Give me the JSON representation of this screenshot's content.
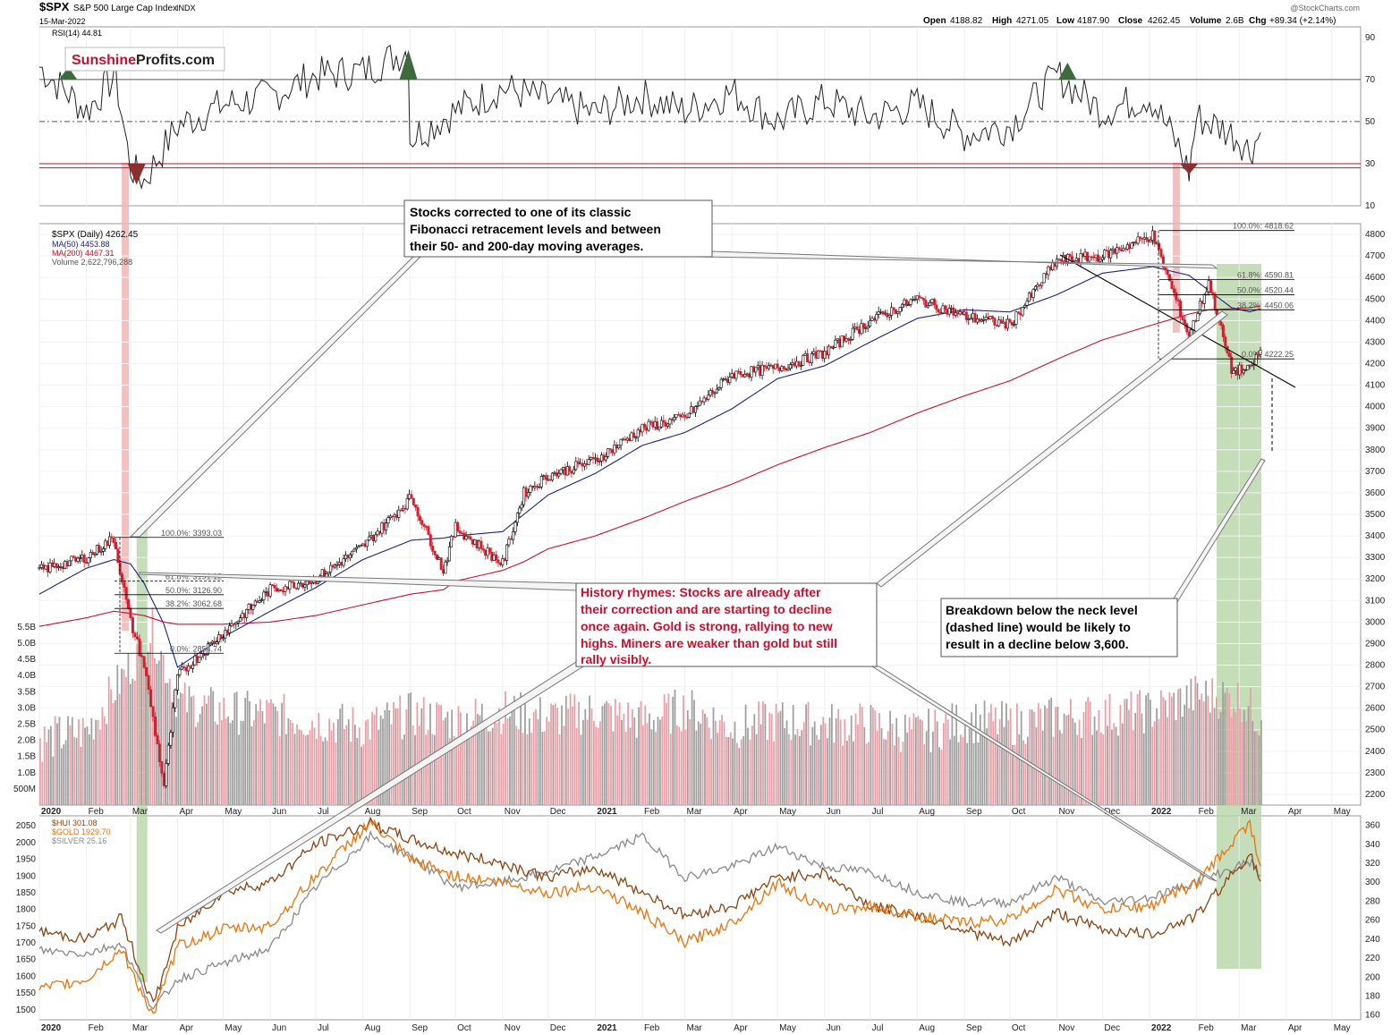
{
  "header": {
    "symbol": "$SPX",
    "name": "S&P 500 Large Cap Index",
    "exchange": "INDX",
    "date": "15-Mar-2022",
    "copyright": "@StockCharts.com",
    "open_label": "Open",
    "open": "4188.82",
    "high_label": "High",
    "high": "4271.05",
    "low_label": "Low",
    "low": "4187.90",
    "close_label": "Close",
    "close": "4262.45",
    "volume_label": "Volume",
    "volume": "2.6B",
    "chg_label": "Chg",
    "chg": "+89.34 (+2.14%)"
  },
  "watermark": {
    "part1": "Sunshine",
    "part2": "Profits.com",
    "color1": "#c8102e"
  },
  "colors": {
    "price_up": "#000000",
    "price_down": "#d0202e",
    "ma50": "#1a237e",
    "ma200": "#c8102e",
    "rsi": "#222222",
    "rsi_overbought": "#3d6b3d",
    "rsi_oversold": "#8b2e2e",
    "vol_up": "#a0a0a0",
    "vol_down": "#e8a0a8",
    "hui": "#8b4513",
    "gold": "#e8740c",
    "silver": "#8a8a8a",
    "green_band": "#b8d4a8",
    "red_band": "#f0b0b0",
    "annotation_red": "#c8102e"
  },
  "chart_data": [
    {
      "type": "line",
      "panel": "RSI",
      "legend": "RSI(14) 44.81",
      "yticks": [
        10,
        30,
        50,
        70,
        90
      ],
      "levels": [
        30,
        50,
        70
      ],
      "ylim": [
        10,
        95
      ],
      "x": [
        "2020-01",
        "2020-02",
        "2020-02-20",
        "2020-03-01",
        "2020-03-10",
        "2020-04",
        "2020-05",
        "2020-06",
        "2020-07",
        "2020-08",
        "2020-08-31",
        "2020-09",
        "2020-10",
        "2020-11",
        "2020-12",
        "2021-01",
        "2021-02",
        "2021-03",
        "2021-04",
        "2021-05",
        "2021-06",
        "2021-07",
        "2021-08",
        "2021-09",
        "2021-10",
        "2021-11",
        "2021-12",
        "2022-01-01",
        "2022-01-20",
        "2022-01-27",
        "2022-02",
        "2022-02-20",
        "2022-03-01",
        "2022-03-08",
        "2022-03-15"
      ],
      "values": [
        76,
        55,
        72,
        28,
        22,
        48,
        58,
        62,
        72,
        74,
        84,
        42,
        55,
        66,
        60,
        54,
        62,
        55,
        64,
        50,
        60,
        52,
        58,
        44,
        48,
        72,
        55,
        62,
        38,
        26,
        52,
        46,
        42,
        36,
        44.81
      ]
    },
    {
      "type": "line",
      "panel": "price",
      "legend": [
        "$SPX (Daily) 4262.45",
        "MA(50) 4453.88",
        "MA(200) 4467.31",
        "Volume 2,622,796,288"
      ],
      "ylim": [
        2150,
        4850
      ],
      "yticks": [
        2200,
        2300,
        2400,
        2500,
        2600,
        2700,
        2800,
        2900,
        3000,
        3100,
        3200,
        3300,
        3400,
        3500,
        3600,
        3700,
        3800,
        3900,
        4000,
        4100,
        4200,
        4300,
        4400,
        4500,
        4600,
        4700,
        4800
      ],
      "x": [
        "2020-01",
        "2020-02",
        "2020-02-19",
        "2020-03-01",
        "2020-03-10",
        "2020-03-23",
        "2020-04",
        "2020-05",
        "2020-06",
        "2020-07",
        "2020-08",
        "2020-09-02",
        "2020-09-23",
        "2020-10",
        "2020-11-01",
        "2020-11-15",
        "2020-12",
        "2021-01",
        "2021-02",
        "2021-03",
        "2021-04",
        "2021-05",
        "2021-06",
        "2021-07",
        "2021-08",
        "2021-09",
        "2021-10",
        "2021-11",
        "2021-12",
        "2022-01-03",
        "2022-01-27",
        "2022-02-09",
        "2022-02-24",
        "2022-03-08",
        "2022-03-15"
      ],
      "spx": [
        3240,
        3300,
        3390,
        3000,
        2800,
        2240,
        2750,
        2950,
        3150,
        3200,
        3350,
        3580,
        3240,
        3440,
        3270,
        3600,
        3680,
        3750,
        3900,
        3950,
        4150,
        4180,
        4250,
        4400,
        4500,
        4420,
        4380,
        4680,
        4700,
        4796,
        4330,
        4580,
        4170,
        4170,
        4262.45
      ],
      "ma50": [
        3130,
        3250,
        3290,
        3270,
        3180,
        2990,
        2790,
        2930,
        3050,
        3160,
        3290,
        3380,
        3390,
        3400,
        3420,
        3500,
        3590,
        3690,
        3820,
        3880,
        3990,
        4130,
        4190,
        4300,
        4410,
        4450,
        4440,
        4520,
        4620,
        4650,
        4610,
        4540,
        4460,
        4440,
        4453.88
      ],
      "ma200": [
        2980,
        3020,
        3050,
        3040,
        3030,
        3000,
        2990,
        2990,
        3000,
        3030,
        3080,
        3130,
        3150,
        3190,
        3240,
        3280,
        3340,
        3400,
        3480,
        3560,
        3640,
        3730,
        3810,
        3880,
        3970,
        4050,
        4120,
        4220,
        4310,
        4380,
        4430,
        4450,
        4455,
        4460,
        4467.31
      ]
    },
    {
      "type": "bar",
      "panel": "volume",
      "yticks": [
        "500M",
        "1.0B",
        "1.5B",
        "2.0B",
        "2.5B",
        "3.0B",
        "3.5B",
        "4.0B",
        "4.5B",
        "5.0B",
        "5.5B"
      ],
      "ylim": [
        0,
        5.8
      ],
      "x": [
        "2020-01",
        "2020-02",
        "2020-02-28",
        "2020-03-15",
        "2020-04",
        "2020-05",
        "2020-06",
        "2020-07",
        "2020-08",
        "2020-09",
        "2020-10",
        "2020-11",
        "2020-12",
        "2021-01",
        "2021-02",
        "2021-03",
        "2021-04",
        "2021-05",
        "2021-06",
        "2021-07",
        "2021-08",
        "2021-09",
        "2021-10",
        "2021-11",
        "2021-12",
        "2022-01",
        "2022-02",
        "2022-03",
        "2022-03-15"
      ],
      "values": [
        2.0,
        2.3,
        4.2,
        5.4,
        3.2,
        2.9,
        2.8,
        2.6,
        2.4,
        2.8,
        2.6,
        2.9,
        2.7,
        2.9,
        2.6,
        3.0,
        2.4,
        2.6,
        2.5,
        2.5,
        2.2,
        2.6,
        2.5,
        2.7,
        2.8,
        2.9,
        3.4,
        3.3,
        2.62
      ]
    },
    {
      "type": "line",
      "panel": "metals",
      "left_axis_yticks": [
        1500,
        1550,
        1600,
        1650,
        1700,
        1750,
        1800,
        1850,
        1900,
        1950,
        2000,
        2050
      ],
      "right_axis_yticks": [
        160,
        180,
        200,
        220,
        240,
        260,
        280,
        300,
        320,
        340,
        360
      ],
      "legend": [
        "$HUI 301.08",
        "$GOLD 1929.70",
        "$SILVER 25.16"
      ],
      "x": [
        "2020-01",
        "2020-02",
        "2020-02-24",
        "2020-03-16",
        "2020-04",
        "2020-05",
        "2020-06",
        "2020-07",
        "2020-08-06",
        "2020-09",
        "2020-10",
        "2020-11",
        "2020-12",
        "2021-01",
        "2021-02",
        "2021-03",
        "2021-04",
        "2021-05",
        "2021-06",
        "2021-07",
        "2021-08",
        "2021-09",
        "2021-10",
        "2021-11",
        "2021-12",
        "2022-01",
        "2022-02",
        "2022-03-08",
        "2022-03-15"
      ],
      "hui": [
        248,
        240,
        262,
        170,
        250,
        290,
        300,
        340,
        362,
        345,
        330,
        320,
        305,
        315,
        290,
        265,
        275,
        305,
        310,
        275,
        265,
        250,
        235,
        268,
        250,
        245,
        265,
        330,
        301.08
      ],
      "gold": [
        1560,
        1590,
        1680,
        1480,
        1690,
        1740,
        1750,
        1900,
        2060,
        1950,
        1900,
        1880,
        1850,
        1870,
        1790,
        1700,
        1760,
        1880,
        1800,
        1810,
        1780,
        1760,
        1770,
        1860,
        1800,
        1810,
        1880,
        2060,
        1929.7
      ],
      "silver": [
        17.8,
        17.5,
        18.5,
        12.0,
        15.0,
        16.5,
        18.0,
        24.0,
        29.0,
        27.0,
        24.0,
        24.5,
        25.5,
        27.0,
        29.0,
        25.0,
        26.0,
        28.0,
        26.0,
        25.5,
        23.5,
        22.5,
        22.5,
        25.0,
        22.5,
        23.0,
        24.5,
        26.5,
        25.16
      ]
    }
  ],
  "x_axis": {
    "labels": [
      "2020",
      "Feb",
      "Mar",
      "Apr",
      "May",
      "Jun",
      "Jul",
      "Aug",
      "Sep",
      "Oct",
      "Nov",
      "Dec",
      "2021",
      "Feb",
      "Mar",
      "Apr",
      "May",
      "Jun",
      "Jul",
      "Aug",
      "Sep",
      "Oct",
      "Nov",
      "Dec",
      "2022",
      "Feb",
      "Mar",
      "Apr",
      "May"
    ],
    "dates": [
      "2020-01",
      "2020-02",
      "2020-03",
      "2020-04",
      "2020-05",
      "2020-06",
      "2020-07",
      "2020-08",
      "2020-09",
      "2020-10",
      "2020-11",
      "2020-12",
      "2021-01",
      "2021-02",
      "2021-03",
      "2021-04",
      "2021-05",
      "2021-06",
      "2021-07",
      "2021-08",
      "2021-09",
      "2021-10",
      "2021-11",
      "2021-12",
      "2022-01",
      "2022-02",
      "2022-03",
      "2022-04",
      "2022-05"
    ],
    "start": "2020-01",
    "end": "2022-05-20"
  },
  "fib_2020": [
    {
      "label": "100.0%: 3393.03",
      "value": 3393
    },
    {
      "label": "61.8%: 3191.12",
      "value": 3191
    },
    {
      "label": "50.0%: 3126.90",
      "value": 3127
    },
    {
      "label": "38.2%: 3062.68",
      "value": 3063
    },
    {
      "label": "0.0%: 2854.74",
      "value": 2855
    }
  ],
  "fib_2022": [
    {
      "label": "100.0%: 4818.62",
      "value": 4818
    },
    {
      "label": "61.8%: 4590.81",
      "value": 4591
    },
    {
      "label": "50.0%: 4520.44",
      "value": 4520
    },
    {
      "label": "38.2%: 4450.06",
      "value": 4450
    },
    {
      "label": "0.0%: 4222.25",
      "value": 4222
    }
  ],
  "annotations": {
    "fib_note": [
      "Stocks corrected to one of its classic",
      "Fibonacci retracement levels and between",
      "their 50- and 200-day moving averages."
    ],
    "history_note": [
      "History rhymes: Stocks are already after",
      "their correction and are starting to decline",
      "once again. Gold is strong, rallying to new",
      "highs. Miners are weaker than gold but still",
      "rally visibly."
    ],
    "breakdown_note": [
      "Breakdown below the neck level",
      "(dashed line) would be likely to",
      "result in a decline below 3,600."
    ]
  }
}
